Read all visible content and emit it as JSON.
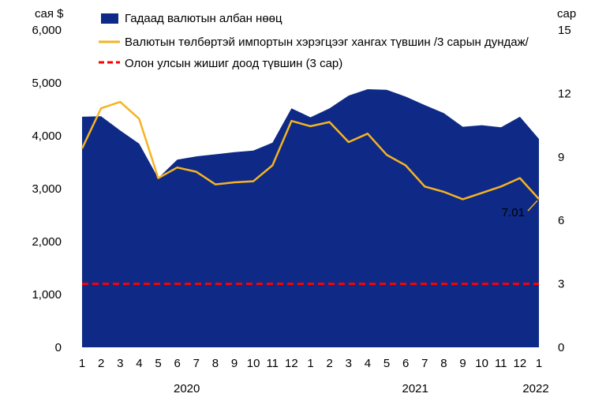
{
  "chart_data": {
    "type": "area",
    "left_axis": {
      "unit_label": "сая $",
      "ticks": [
        "0",
        "1,000",
        "2,000",
        "3,000",
        "4,000",
        "5,000",
        "6,000"
      ],
      "ylim": [
        0,
        6000
      ]
    },
    "right_axis": {
      "unit_label": "сар",
      "ticks": [
        "0",
        "3",
        "6",
        "9",
        "12",
        "15"
      ],
      "ylim": [
        0,
        15
      ]
    },
    "x_tick_labels": [
      "1",
      "2",
      "3",
      "4",
      "5",
      "6",
      "7",
      "8",
      "9",
      "10",
      "11",
      "12",
      "1",
      "2",
      "3",
      "4",
      "5",
      "6",
      "7",
      "8",
      "9",
      "10",
      "11",
      "12",
      "1"
    ],
    "year_labels": [
      {
        "label": "2020",
        "index": 5.5
      },
      {
        "label": "2021",
        "index": 17.5
      },
      {
        "label": "2022",
        "index": 24
      }
    ],
    "series": [
      {
        "name": "Гадаад валютын албан нөөц",
        "type": "area",
        "axis": "left",
        "color": "#0e2a86",
        "values": [
          4360,
          4370,
          4100,
          3850,
          3200,
          3550,
          3610,
          3650,
          3690,
          3720,
          3870,
          4520,
          4350,
          4520,
          4760,
          4880,
          4870,
          4740,
          4580,
          4430,
          4170,
          4200,
          4160,
          4360,
          3940
        ]
      },
      {
        "name": "Валютын төлбөртэй импортын хэрэгцээг хангах түвшин /3 сарын дундаж/",
        "type": "line",
        "axis": "right",
        "color": "#f5b323",
        "values": [
          9.4,
          11.3,
          11.6,
          10.8,
          8.0,
          8.5,
          8.3,
          7.7,
          7.8,
          7.85,
          8.6,
          10.7,
          10.45,
          10.65,
          9.7,
          10.1,
          9.1,
          8.6,
          7.6,
          7.35,
          7.0,
          7.3,
          7.6,
          8.0,
          7.01
        ]
      },
      {
        "name": "Олон улсын жишиг доод түвшин (3 сар)",
        "type": "dashed-line",
        "axis": "right",
        "color": "#ff0000",
        "values": [
          3,
          3,
          3,
          3,
          3,
          3,
          3,
          3,
          3,
          3,
          3,
          3,
          3,
          3,
          3,
          3,
          3,
          3,
          3,
          3,
          3,
          3,
          3,
          3,
          3
        ]
      }
    ],
    "annotation": {
      "text": "7.01",
      "index": 24,
      "series": 1,
      "color": "#f5b323"
    },
    "legend": "top-right",
    "grid": false
  }
}
